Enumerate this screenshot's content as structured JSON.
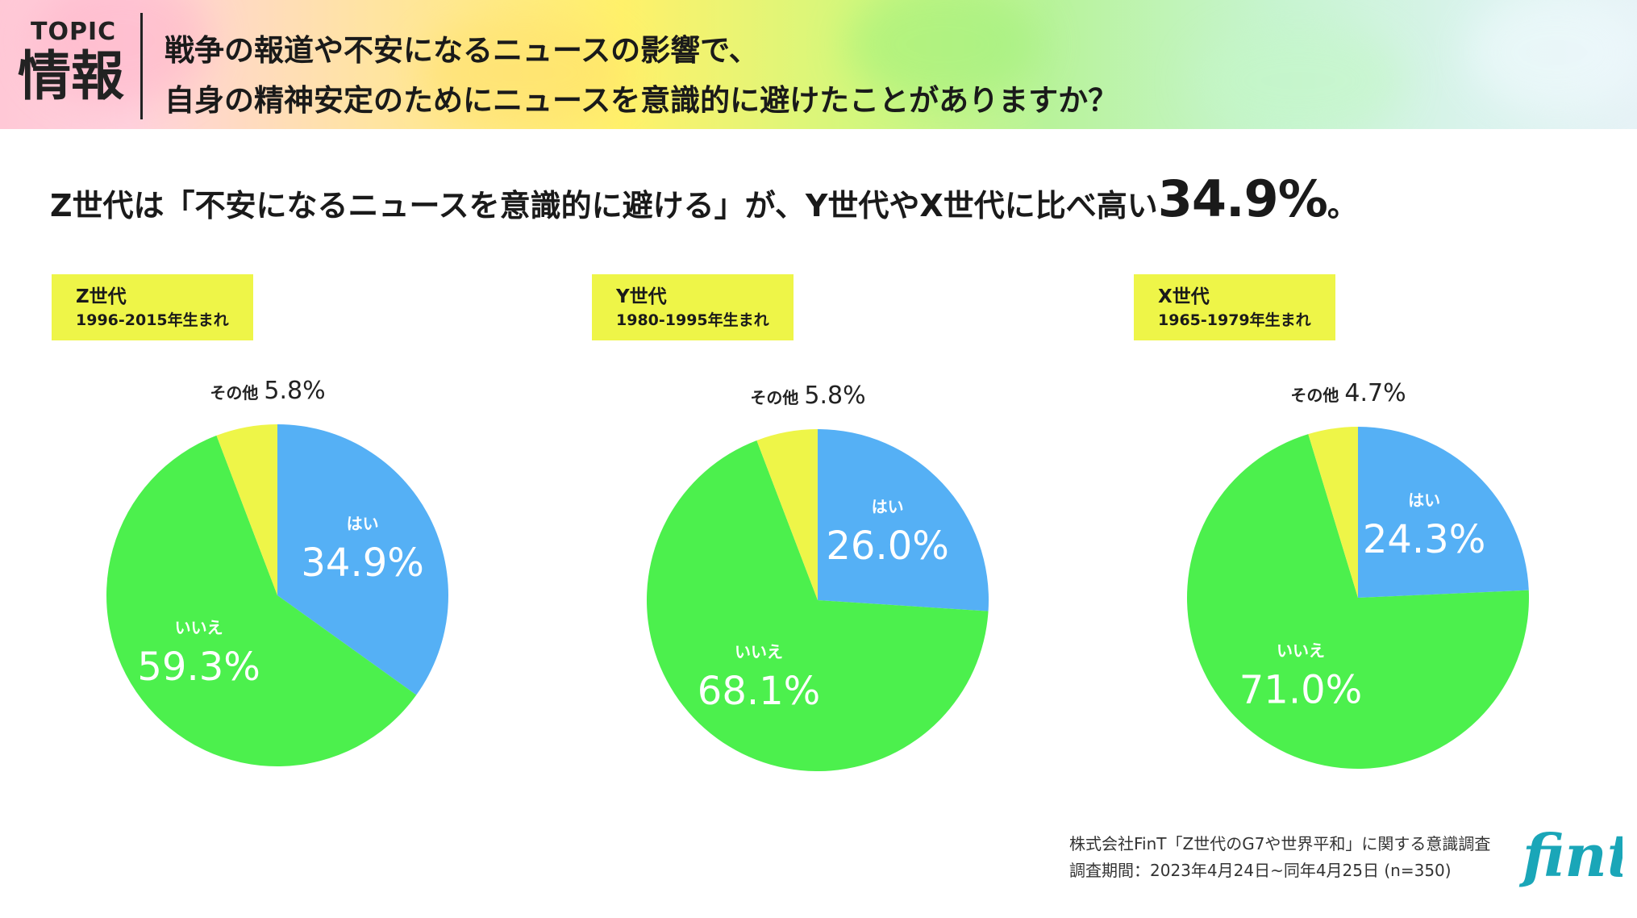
{
  "banner": {
    "topic_word": "TOPIC",
    "topic_name": "情報",
    "question_line1": "戦争の報道や不安になるニュースの影響で、",
    "question_line2": "自身の精神安定のためにニュースを意識的に避けたことがありますか？"
  },
  "headline": {
    "text": "Z世代は「不安になるニュースを意識的に避ける」が、Y世代やX世代に比べ高い",
    "highlight": "34.9%",
    "tail": "。"
  },
  "chart_data": [
    {
      "type": "pie",
      "generation": "Z世代",
      "birth_range": "1996-2015年生まれ",
      "slices": [
        {
          "label": "はい",
          "value": 34.9,
          "display": "34.9%"
        },
        {
          "label": "いいえ",
          "value": 59.3,
          "display": "59.3%"
        },
        {
          "label": "その他",
          "value": 5.8,
          "display": "5.8%"
        }
      ]
    },
    {
      "type": "pie",
      "generation": "Y世代",
      "birth_range": "1980-1995年生まれ",
      "slices": [
        {
          "label": "はい",
          "value": 26.0,
          "display": "26.0%"
        },
        {
          "label": "いいえ",
          "value": 68.1,
          "display": "68.1%"
        },
        {
          "label": "その他",
          "value": 5.8,
          "display": "5.8%"
        }
      ]
    },
    {
      "type": "pie",
      "generation": "X世代",
      "birth_range": "1965-1979年生まれ",
      "slices": [
        {
          "label": "はい",
          "value": 24.3,
          "display": "24.3%"
        },
        {
          "label": "いいえ",
          "value": 71.0,
          "display": "71.0%"
        },
        {
          "label": "その他",
          "value": 4.7,
          "display": "4.7%"
        }
      ]
    }
  ],
  "colors": {
    "yes": "#55b0f5",
    "no": "#4cf04d",
    "other": "#eef548",
    "label_bg": "#eef548",
    "logo": "#1aa6b8"
  },
  "footer": {
    "source": "株式会社FinT「Z世代のG7や世界平和」に関する意識調査",
    "period": "調査期間：2023年4月24日~同年4月25日 (n=350)"
  },
  "logo": {
    "text": "fint",
    "icon": "fint-logo"
  }
}
